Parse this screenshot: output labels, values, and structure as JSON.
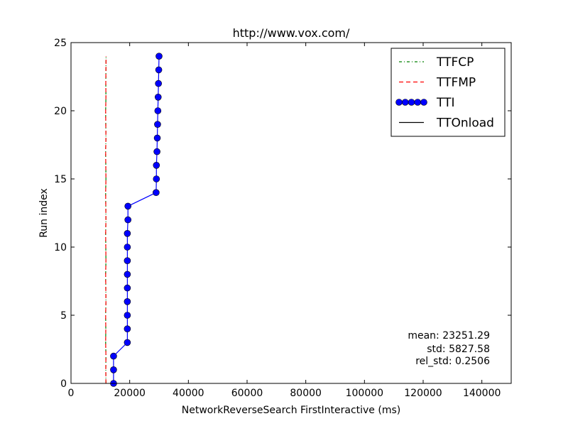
{
  "chart_data": {
    "type": "line",
    "title": "http://www.vox.com/",
    "xlabel": "NetworkReverseSearch FirstInteractive (ms)",
    "ylabel": "Run index",
    "xlim": [
      0,
      150000
    ],
    "ylim": [
      0,
      25
    ],
    "xticks": [
      0,
      20000,
      40000,
      60000,
      80000,
      100000,
      120000,
      140000
    ],
    "yticks": [
      0,
      5,
      10,
      15,
      20,
      25
    ],
    "legend_position": "top-right",
    "grid": false,
    "series": [
      {
        "name": "TTFCP",
        "color": "#008000",
        "style": "dash-dot",
        "marker": "none",
        "x": [
          11900,
          11850,
          11900,
          11800,
          11850,
          11800,
          11900,
          11850,
          11800,
          11900,
          11850,
          11800,
          11900,
          11850,
          11800,
          11900,
          11850,
          11800,
          11900,
          11850,
          11800,
          11900,
          11850,
          11900,
          11950
        ],
        "y": [
          0,
          1,
          2,
          3,
          4,
          5,
          6,
          7,
          8,
          9,
          10,
          11,
          12,
          13,
          14,
          15,
          16,
          17,
          18,
          19,
          20,
          21,
          22,
          23,
          24
        ]
      },
      {
        "name": "TTFMP",
        "color": "#ff0000",
        "style": "dashed",
        "marker": "none",
        "x": [
          11900,
          11850,
          11900,
          11800,
          11850,
          11800,
          11900,
          11850,
          11800,
          11900,
          11850,
          11800,
          11900,
          11850,
          11800,
          11900,
          11850,
          11800,
          11900,
          11850,
          11800,
          11900,
          11850,
          11900,
          11950
        ],
        "y": [
          0,
          1,
          2,
          3,
          4,
          5,
          6,
          7,
          8,
          9,
          10,
          11,
          12,
          13,
          14,
          15,
          16,
          17,
          18,
          19,
          20,
          21,
          22,
          23,
          24
        ]
      },
      {
        "name": "TTI",
        "color": "#0000ff",
        "style": "solid",
        "marker": "circle",
        "x": [
          14500,
          14500,
          14500,
          19200,
          19200,
          19200,
          19200,
          19200,
          19200,
          19200,
          19200,
          19200,
          19400,
          19400,
          29000,
          29100,
          29100,
          29300,
          29400,
          29500,
          29600,
          29700,
          29800,
          29900,
          30000
        ],
        "y": [
          0,
          1,
          2,
          3,
          4,
          5,
          6,
          7,
          8,
          9,
          10,
          11,
          12,
          13,
          14,
          15,
          16,
          17,
          18,
          19,
          20,
          21,
          22,
          23,
          24
        ]
      },
      {
        "name": "TTOnload",
        "color": "#000000",
        "style": "solid",
        "marker": "none",
        "x": [],
        "y": []
      }
    ],
    "annotations": {
      "mean": "mean: 23251.29",
      "std": "std: 5827.58",
      "rel_std": "rel_std: 0.2506"
    }
  }
}
